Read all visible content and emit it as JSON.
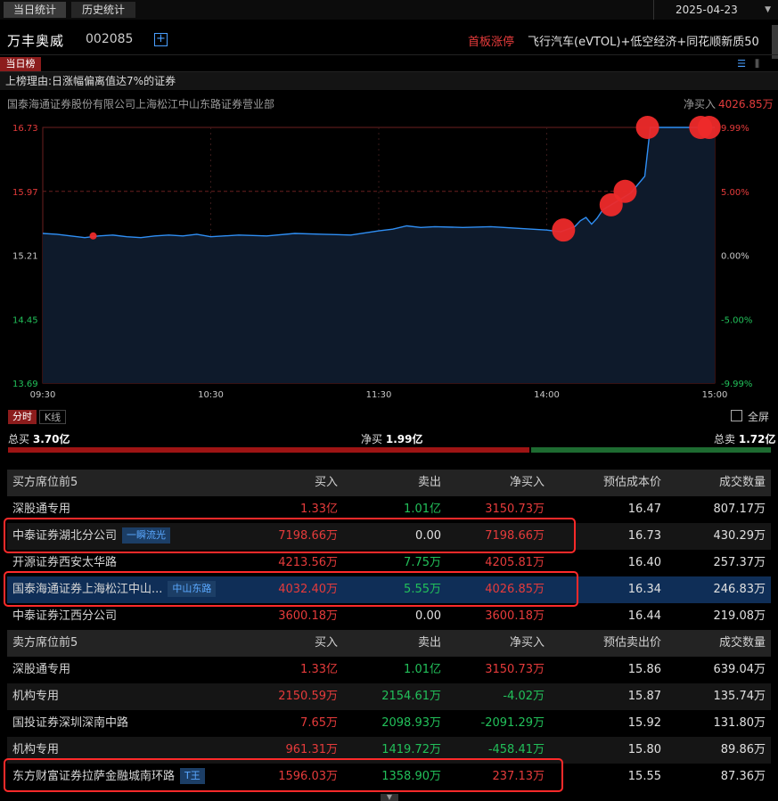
{
  "tabs": {
    "today": "当日统计",
    "history": "历史统计"
  },
  "date": "2025-04-23",
  "stock": {
    "name": "万丰奥威",
    "code": "002085",
    "tag": "首板涨停",
    "concept": "飞行汽车(eVTOL)+低空经济+同花顺新质50"
  },
  "rank_tab": "当日榜",
  "reason": "上榜理由:日涨幅偏离值达7%的证券",
  "broker": "国泰海通证券股份有限公司上海松江中山东路证券营业部",
  "net_buy_label": "净买入",
  "net_buy_value": "4026.85万",
  "chart_data": {
    "type": "line",
    "y_ticks": [
      "16.73",
      "15.97",
      "15.21",
      "14.45",
      "13.69"
    ],
    "pct_ticks": [
      "9.99%",
      "5.00%",
      "0.00%",
      "-5.00%",
      "-9.99%"
    ],
    "x_ticks": [
      "09:30",
      "10:30",
      "11:30",
      "14:00",
      "15:00"
    ],
    "ylim": [
      13.69,
      16.73
    ],
    "prev_close": 15.21,
    "series": [
      {
        "minute": [
          0,
          5,
          10,
          15,
          20,
          25,
          30,
          35,
          40,
          45,
          50,
          55,
          60,
          70,
          80,
          90,
          100,
          110,
          120,
          125,
          130,
          135,
          140,
          150,
          160,
          170,
          180,
          185,
          190,
          192,
          194,
          196,
          198,
          200,
          205,
          210,
          215,
          217,
          219,
          222,
          225,
          228,
          232,
          236,
          238,
          240
        ],
        "price": [
          15.47,
          15.46,
          15.44,
          15.42,
          15.44,
          15.45,
          15.43,
          15.42,
          15.44,
          15.45,
          15.44,
          15.46,
          15.43,
          15.45,
          15.44,
          15.47,
          15.46,
          15.45,
          15.5,
          15.52,
          15.56,
          15.54,
          15.55,
          15.54,
          15.55,
          15.53,
          15.51,
          15.49,
          15.55,
          15.62,
          15.66,
          15.58,
          15.65,
          15.75,
          15.85,
          15.95,
          16.15,
          16.73,
          16.73,
          16.73,
          16.73,
          16.73,
          16.73,
          16.73,
          16.73,
          16.73
        ]
      }
    ],
    "trades": [
      {
        "minute": 18,
        "price": 15.44,
        "size": "small"
      },
      {
        "minute": 186,
        "price": 15.51,
        "size": "large"
      },
      {
        "minute": 203,
        "price": 15.81,
        "size": "large"
      },
      {
        "minute": 208,
        "price": 15.97,
        "size": "large"
      },
      {
        "minute": 216,
        "price": 16.73,
        "size": "large"
      },
      {
        "minute": 235,
        "price": 16.73,
        "size": "large"
      },
      {
        "minute": 238,
        "price": 16.73,
        "size": "large"
      }
    ]
  },
  "modes": {
    "fenshi": "分时",
    "kline": "K线"
  },
  "fullscreen": "全屏",
  "summary": {
    "total_buy_label": "总买",
    "total_buy": "3.70亿",
    "net_label": "净买",
    "net": "1.99亿",
    "total_sell_label": "总卖",
    "total_sell": "1.72亿",
    "buy_ratio": 0.683
  },
  "buy_table": {
    "headers": [
      "买方席位前5",
      "买入",
      "卖出",
      "净买入",
      "预估成本价",
      "成交数量"
    ],
    "rows": [
      [
        "深股通专用",
        "1.33亿",
        "1.01亿",
        "3150.73万",
        "16.47",
        "807.17万",
        ""
      ],
      [
        "中泰证券湖北分公司",
        "7198.66万",
        "0.00",
        "7198.66万",
        "16.73",
        "430.29万",
        "一瞬流光"
      ],
      [
        "开源证券西安太华路",
        "4213.56万",
        "7.75万",
        "4205.81万",
        "16.40",
        "257.37万",
        ""
      ],
      [
        "国泰海通证券上海松江中山...",
        "4032.40万",
        "5.55万",
        "4026.85万",
        "16.34",
        "246.83万",
        "中山东路"
      ],
      [
        "中泰证券江西分公司",
        "3600.18万",
        "0.00",
        "3600.18万",
        "16.44",
        "219.08万",
        ""
      ]
    ]
  },
  "sell_table": {
    "headers": [
      "卖方席位前5",
      "买入",
      "卖出",
      "净买入",
      "预估卖出价",
      "成交数量"
    ],
    "rows": [
      [
        "深股通专用",
        "1.33亿",
        "1.01亿",
        "3150.73万",
        "15.86",
        "639.04万",
        ""
      ],
      [
        "机构专用",
        "2150.59万",
        "2154.61万",
        "-4.02万",
        "15.87",
        "135.74万",
        ""
      ],
      [
        "国投证券深圳深南中路",
        "7.65万",
        "2098.93万",
        "-2091.29万",
        "15.92",
        "131.80万",
        ""
      ],
      [
        "机构专用",
        "961.31万",
        "1419.72万",
        "-458.41万",
        "15.80",
        "89.86万",
        ""
      ],
      [
        "东方财富证券拉萨金融城南环路",
        "1596.03万",
        "1358.90万",
        "237.13万",
        "15.55",
        "87.36万",
        "T王"
      ]
    ]
  }
}
